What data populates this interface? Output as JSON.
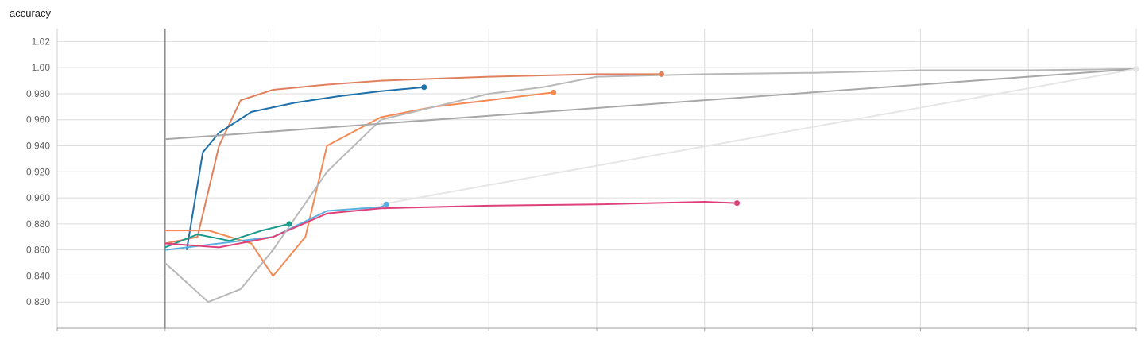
{
  "chart_data": {
    "type": "line",
    "title": "accuracy",
    "xlabel": "",
    "ylabel": "",
    "ylim": [
      0.8,
      1.03
    ],
    "xlim": [
      -1,
      9
    ],
    "ytick_labels": [
      "0.820",
      "0.840",
      "0.860",
      "0.880",
      "0.900",
      "0.920",
      "0.940",
      "0.960",
      "0.980",
      "1.00",
      "1.02"
    ],
    "ytick_values": [
      0.82,
      0.84,
      0.86,
      0.88,
      0.9,
      0.92,
      0.94,
      0.96,
      0.98,
      1.0,
      1.02
    ],
    "grid": true,
    "legend": "none",
    "series": [
      {
        "color": "#e0805d",
        "x": [
          0,
          0.3,
          0.5,
          0.7,
          1.0,
          1.5,
          2.0,
          3.0,
          4.0,
          4.6
        ],
        "y": [
          0.865,
          0.87,
          0.94,
          0.975,
          0.983,
          0.987,
          0.99,
          0.993,
          0.995,
          0.995
        ]
      },
      {
        "color": "#1f6fa8",
        "x": [
          0.2,
          0.35,
          0.5,
          0.8,
          1.2,
          1.6,
          2.0,
          2.4
        ],
        "y": [
          0.86,
          0.935,
          0.95,
          0.966,
          0.973,
          0.978,
          0.982,
          0.985
        ]
      },
      {
        "color": "#f58a54",
        "x": [
          0,
          0.4,
          0.8,
          1.0,
          1.3,
          1.5,
          2.0,
          2.5,
          3.0,
          3.6
        ],
        "y": [
          0.875,
          0.875,
          0.865,
          0.84,
          0.87,
          0.94,
          0.962,
          0.97,
          0.975,
          0.981
        ]
      },
      {
        "color": "#1a9a8a",
        "x": [
          0,
          0.3,
          0.6,
          0.9,
          1.15
        ],
        "y": [
          0.862,
          0.872,
          0.867,
          0.875,
          0.88
        ]
      },
      {
        "color": "#5ab0e0",
        "x": [
          0,
          0.5,
          1.0,
          1.5,
          2.0,
          2.05
        ],
        "y": [
          0.86,
          0.865,
          0.87,
          0.89,
          0.893,
          0.895
        ]
      },
      {
        "color": "#e0407a",
        "x": [
          0,
          0.5,
          1.0,
          1.5,
          2.0,
          3.0,
          4.0,
          5.0,
          5.3
        ],
        "y": [
          0.865,
          0.862,
          0.87,
          0.888,
          0.892,
          0.894,
          0.895,
          0.897,
          0.896
        ]
      },
      {
        "color": "#b8b8b8",
        "x": [
          0,
          0.4,
          0.7,
          1.0,
          1.5,
          2.0,
          2.5,
          3.0,
          3.5,
          4.0,
          5.0,
          6.0,
          7.0,
          8.0,
          9.0
        ],
        "y": [
          0.85,
          0.82,
          0.83,
          0.86,
          0.92,
          0.96,
          0.97,
          0.98,
          0.985,
          0.993,
          0.995,
          0.996,
          0.998,
          0.998,
          0.999
        ]
      },
      {
        "color": "#a8a8a8",
        "x": [
          0,
          9.0
        ],
        "y": [
          0.945,
          0.999
        ]
      },
      {
        "color": "#e6e6e6",
        "x": [
          2.0,
          9.0
        ],
        "y": [
          0.895,
          0.999
        ]
      }
    ]
  }
}
